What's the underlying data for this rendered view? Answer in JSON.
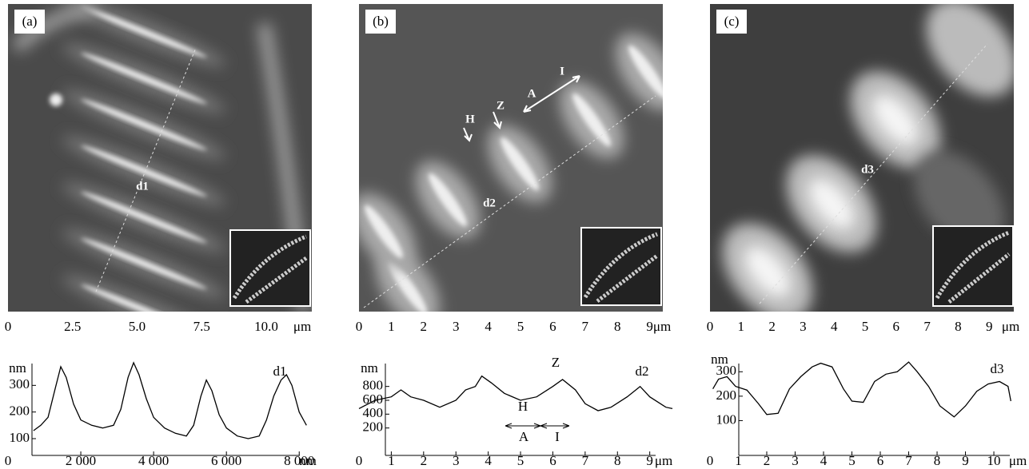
{
  "panels": [
    {
      "label": "(a)",
      "annotations": [
        "d1"
      ],
      "scale_ticks": [
        0,
        2.5,
        {
          "value": 5,
          "label": "5.0"
        },
        7.5,
        {
          "value": 10,
          "label": "10.0"
        }
      ],
      "scale_unit": "μm"
    },
    {
      "label": "(b)",
      "annotations": [
        "H",
        "Z",
        "A",
        "I",
        "d2"
      ],
      "scale_ticks": [
        0,
        1,
        2,
        3,
        4,
        5,
        6,
        7,
        8,
        9
      ],
      "scale_unit": "μm"
    },
    {
      "label": "(c)",
      "annotations": [
        "d3"
      ],
      "scale_ticks": [
        0,
        1,
        2,
        3,
        4,
        5,
        6,
        7,
        8,
        9
      ],
      "scale_unit": "μm"
    }
  ],
  "chart_data": [
    {
      "type": "line",
      "x_label": "nm",
      "y_label": "nm",
      "xlim": [
        0,
        8500
      ],
      "ylim": [
        40,
        385
      ],
      "xticks": [
        0,
        {
          "value": 2000,
          "label": "2 000"
        },
        {
          "value": 4000,
          "label": "4 000"
        },
        {
          "value": 6000,
          "label": "6 000"
        },
        {
          "value": 8000,
          "label": "8 000"
        }
      ],
      "yticks": [
        100,
        200,
        300
      ],
      "series": [
        {
          "name": "d1",
          "color": "#000000",
          "x": [
            700,
            900,
            1100,
            1300,
            1450,
            1600,
            1800,
            2000,
            2300,
            2600,
            2900,
            3100,
            3300,
            3450,
            3600,
            3800,
            4000,
            4300,
            4600,
            4900,
            5100,
            5300,
            5450,
            5600,
            5800,
            6000,
            6300,
            6600,
            6900,
            7100,
            7300,
            7500,
            7650,
            7800,
            8000,
            8200
          ],
          "values": [
            130,
            150,
            180,
            290,
            370,
            330,
            230,
            170,
            150,
            140,
            150,
            210,
            330,
            385,
            340,
            250,
            180,
            140,
            120,
            110,
            150,
            260,
            320,
            280,
            190,
            140,
            110,
            100,
            110,
            170,
            260,
            320,
            340,
            300,
            200,
            150
          ]
        }
      ]
    },
    {
      "type": "line",
      "x_label": "μm",
      "y_label": "nm",
      "xlim": [
        0,
        9.8
      ],
      "ylim": [
        0,
        1050
      ],
      "xticks": [
        0,
        1,
        2,
        3,
        4,
        5,
        6,
        7,
        8,
        9
      ],
      "yticks": [
        200,
        400,
        600,
        800
      ],
      "annotations": [
        "H",
        "Z",
        "A",
        "I"
      ],
      "series": [
        {
          "name": "d2",
          "color": "#000000",
          "x": [
            0,
            0.5,
            1,
            1.3,
            1.6,
            2,
            2.5,
            3,
            3.3,
            3.6,
            3.8,
            4.1,
            4.5,
            5,
            5.5,
            6,
            6.3,
            6.7,
            7,
            7.4,
            7.8,
            8.3,
            8.7,
            9,
            9.5,
            9.7
          ],
          "values": [
            480,
            600,
            650,
            750,
            650,
            600,
            500,
            600,
            750,
            800,
            950,
            850,
            700,
            600,
            650,
            800,
            900,
            750,
            550,
            450,
            500,
            650,
            800,
            650,
            500,
            480
          ]
        }
      ]
    },
    {
      "type": "line",
      "x_label": "μm",
      "y_label": "nm",
      "xlim": [
        0,
        10.9
      ],
      "ylim": [
        0,
        350
      ],
      "xticks": [
        0,
        1,
        2,
        3,
        4,
        5,
        6,
        7,
        8,
        9,
        10
      ],
      "yticks": [
        100,
        200,
        300
      ],
      "series": [
        {
          "name": "d3",
          "color": "#000000",
          "x": [
            0.1,
            0.3,
            0.6,
            0.9,
            1.3,
            1.7,
            2.0,
            2.4,
            2.8,
            3.2,
            3.6,
            3.9,
            4.3,
            4.7,
            5.0,
            5.4,
            5.8,
            6.2,
            6.6,
            7.0,
            7.3,
            7.7,
            8.1,
            8.6,
            9.0,
            9.4,
            9.8,
            10.2,
            10.5,
            10.6
          ],
          "values": [
            230,
            270,
            280,
            240,
            225,
            170,
            125,
            130,
            230,
            280,
            320,
            335,
            320,
            230,
            180,
            175,
            260,
            290,
            300,
            340,
            300,
            240,
            160,
            115,
            160,
            220,
            250,
            260,
            240,
            180
          ]
        }
      ]
    }
  ]
}
